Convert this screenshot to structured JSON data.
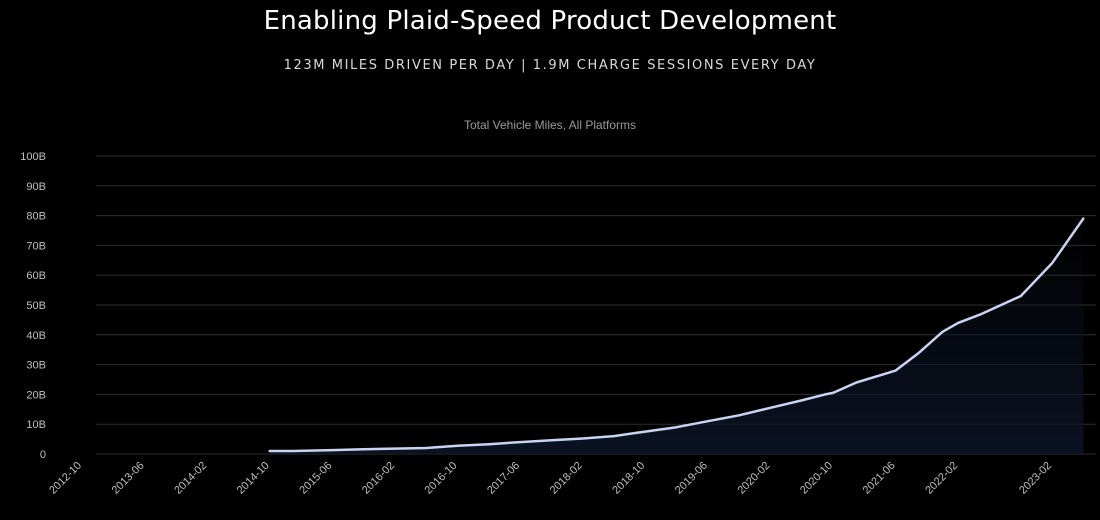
{
  "slide": {
    "title": "Enabling Plaid-Speed Product Development",
    "subtitle": "123M MILES DRIVEN PER DAY | 1.9M CHARGE SESSIONS EVERY DAY"
  },
  "colors": {
    "background": "#000000",
    "line": "#c8d4f0",
    "grid": "#2e2e2e",
    "fill_top": "#0c1426"
  },
  "chart_data": {
    "type": "line",
    "title": "Total Vehicle Miles, All Platforms",
    "xlabel": "",
    "ylabel": "",
    "grid": true,
    "legend": "none",
    "ylim": [
      0,
      100
    ],
    "y_unit": "B",
    "y_ticks": [
      "0",
      "10B",
      "20B",
      "30B",
      "40B",
      "50B",
      "60B",
      "70B",
      "80B",
      "90B",
      "100B"
    ],
    "x_ticks": [
      "2012-10",
      "2013-06",
      "2014-02",
      "2014-10",
      "2015-06",
      "2016-02",
      "2016-10",
      "2017-06",
      "2018-02",
      "2018-10",
      "2019-06",
      "2020-02",
      "2020-10",
      "2021-06",
      "2022-02",
      "2023-02"
    ],
    "series": [
      {
        "x": [
          "2014-10",
          "2015-01",
          "2015-06",
          "2015-10",
          "2016-02",
          "2016-06",
          "2016-10",
          "2017-02",
          "2017-06",
          "2017-10",
          "2018-02",
          "2018-06",
          "2018-10",
          "2019-02",
          "2019-06",
          "2019-10",
          "2020-02",
          "2020-06",
          "2020-09",
          "2020-10",
          "2021-01",
          "2021-06",
          "2021-09",
          "2021-12",
          "2022-02",
          "2022-05",
          "2022-10",
          "2023-02",
          "2023-06"
        ],
        "values": [
          1,
          1,
          1.3,
          1.6,
          1.8,
          2,
          2.8,
          3.3,
          4,
          4.6,
          5.2,
          6,
          7.5,
          9,
          11,
          13,
          15.5,
          18,
          20,
          20.5,
          24,
          28,
          34,
          41,
          44,
          47,
          53,
          64,
          79
        ]
      }
    ]
  }
}
